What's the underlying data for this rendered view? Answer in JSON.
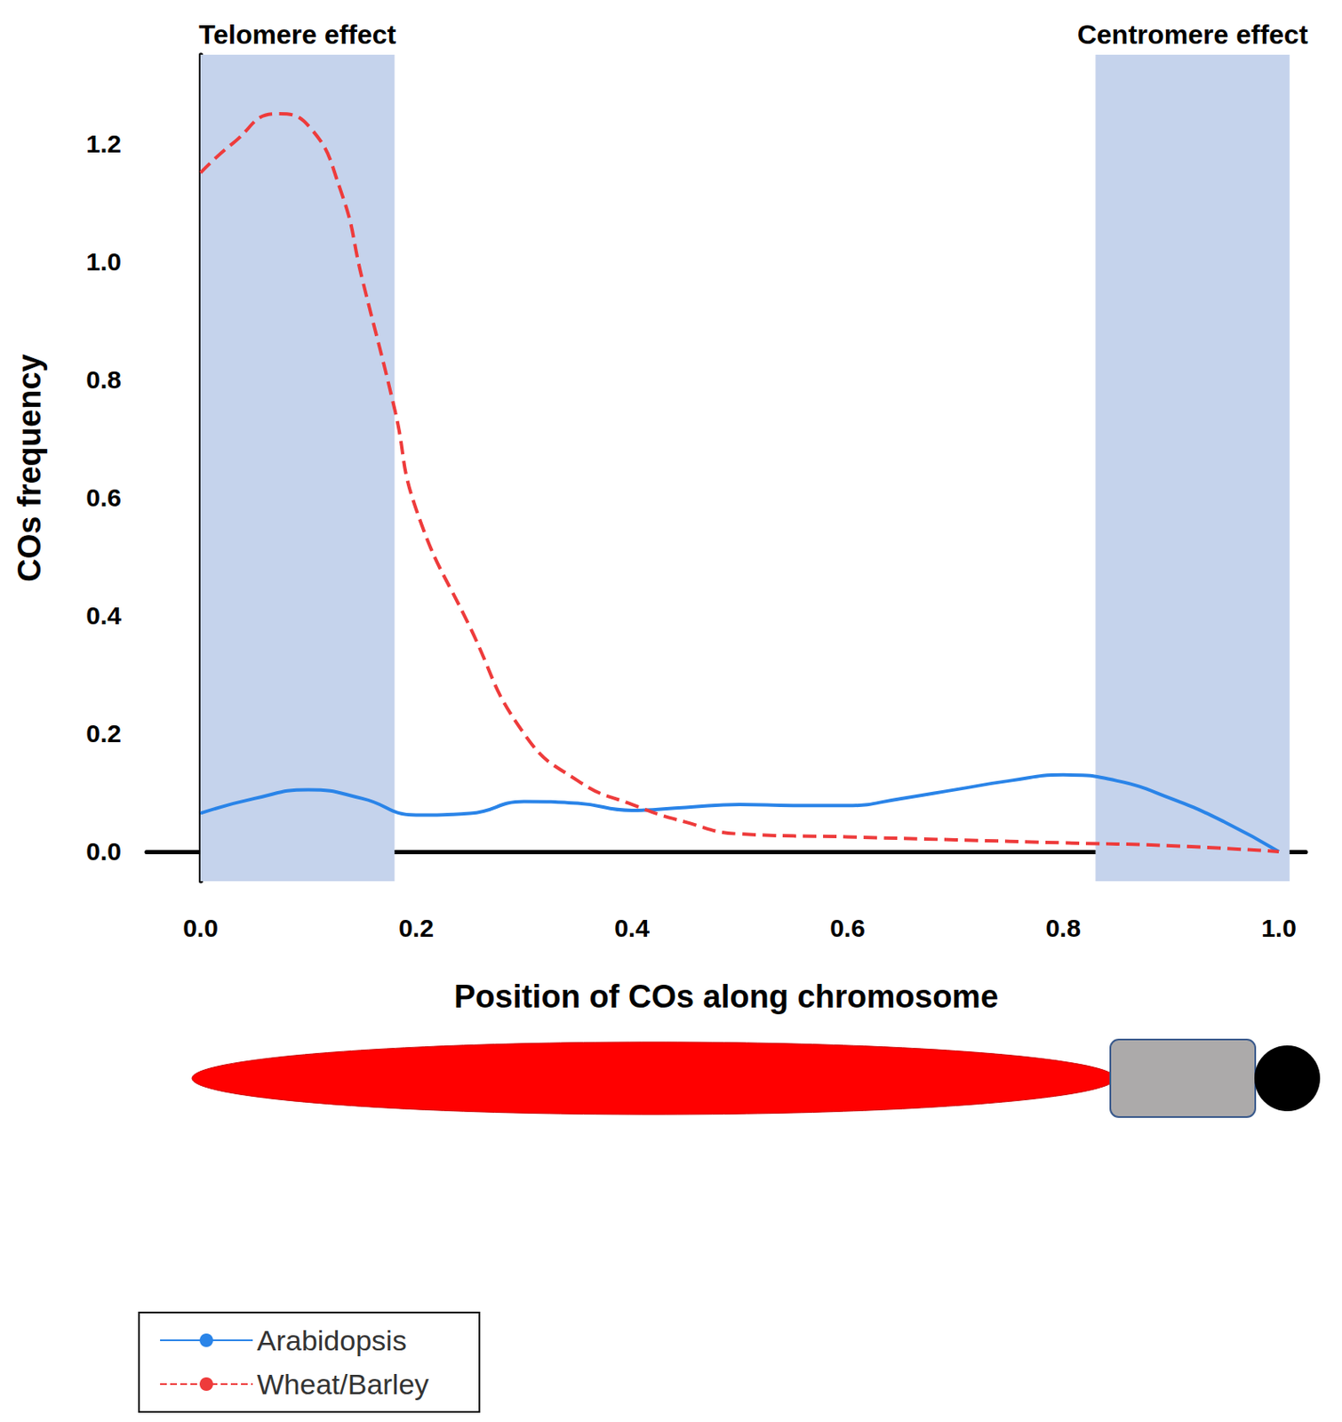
{
  "chart_data": {
    "type": "line",
    "x_label": "Position of COs along chromosome",
    "y_label": "COs frequency",
    "xlim": [
      -0.05,
      1.025
    ],
    "ylim": [
      -0.05,
      1.35
    ],
    "xticks": [
      {
        "value": 0,
        "label": "0.0"
      },
      {
        "value": 0.2,
        "label": "0.2"
      },
      {
        "value": 0.4,
        "label": "0.4"
      },
      {
        "value": 0.6,
        "label": "0.6"
      },
      {
        "value": 0.8,
        "label": "0.8"
      },
      {
        "value": 1,
        "label": "1.0"
      }
    ],
    "yticks": [
      {
        "value": 0,
        "label": "0.0"
      },
      {
        "value": 0.2,
        "label": "0.2"
      },
      {
        "value": 0.4,
        "label": "0.4"
      },
      {
        "value": 0.6,
        "label": "0.6"
      },
      {
        "value": 0.8,
        "label": "0.8"
      },
      {
        "value": 1,
        "label": "1.0"
      },
      {
        "value": 1.2,
        "label": "1.2"
      }
    ],
    "grid": false,
    "legend": "bottom-left",
    "shaded_regions": [
      {
        "label": "Telomere effect",
        "x": [
          0,
          0.18
        ],
        "color": "#c5d3ec"
      },
      {
        "label": "Centromere effect",
        "x": [
          0.83,
          1.01
        ],
        "color": "#c5d3ec"
      }
    ],
    "series": [
      {
        "name": "Arabidopsis",
        "color": "#2a84e8",
        "line_style": "solid",
        "marker": "none",
        "x": [
          0,
          0.05,
          0.1,
          0.15,
          0.2,
          0.25,
          0.3,
          0.35,
          0.4,
          0.45,
          0.5,
          0.55,
          0.6,
          0.65,
          0.7,
          0.75,
          0.8,
          0.85,
          0.9,
          0.95,
          1
        ],
        "values": [
          0.065,
          0.09,
          0.105,
          0.09,
          0.062,
          0.065,
          0.085,
          0.082,
          0.07,
          0.075,
          0.08,
          0.078,
          0.078,
          0.09,
          0.105,
          0.12,
          0.13,
          0.12,
          0.09,
          0.05,
          0
        ]
      },
      {
        "name": "Wheat/Barley",
        "color": "#ee3b3b",
        "line_style": "dashed",
        "marker": "none",
        "x": [
          0,
          0.03,
          0.07,
          0.1,
          0.13,
          0.15,
          0.18,
          0.2,
          0.25,
          0.3,
          0.35,
          0.4,
          0.45,
          0.5,
          0.6,
          0.7,
          0.8,
          0.9,
          1
        ],
        "values": [
          1.15,
          1.2,
          1.25,
          1.23,
          1.12,
          0.97,
          0.75,
          0.58,
          0.38,
          0.2,
          0.12,
          0.08,
          0.05,
          0.03,
          0.025,
          0.02,
          0.015,
          0.01,
          0
        ]
      }
    ]
  }
}
